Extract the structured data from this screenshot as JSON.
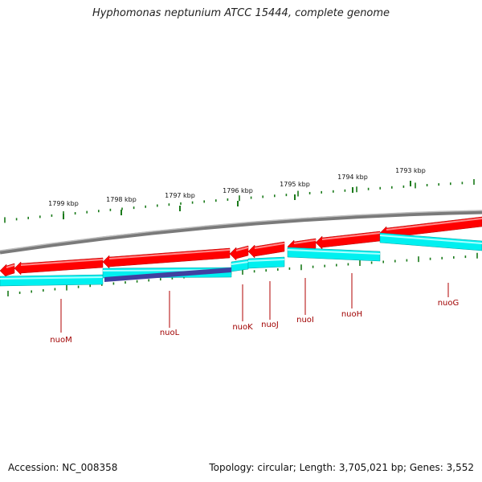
{
  "title": "Hyphomonas neptunium ATCC 15444, complete genome",
  "footer": {
    "accession": "Accession: NC_008358",
    "summary": "Topology: circular; Length: 3,705,021 bp; Genes: 3,552"
  },
  "colors": {
    "backbone": "#808080",
    "forward_cds": "#ff0000",
    "reverse_cds": "#00f0f0",
    "highlight_cds": "#4040a0",
    "ticks": "#1a7a1a",
    "gene_label": "#b00000"
  },
  "scale": {
    "unit": "kbp",
    "major_ticks": [
      {
        "label": "1793 kbp"
      },
      {
        "label": "1794 kbp"
      },
      {
        "label": "1795 kbp"
      },
      {
        "label": "1796 kbp"
      },
      {
        "label": "1797 kbp"
      },
      {
        "label": "1798 kbp"
      },
      {
        "label": "1799 kbp"
      }
    ]
  },
  "genes": [
    {
      "name": "nuoG"
    },
    {
      "name": "nuoH"
    },
    {
      "name": "nuoI"
    },
    {
      "name": "nuoJ"
    },
    {
      "name": "nuoK"
    },
    {
      "name": "nuoL"
    },
    {
      "name": "nuoM"
    }
  ]
}
